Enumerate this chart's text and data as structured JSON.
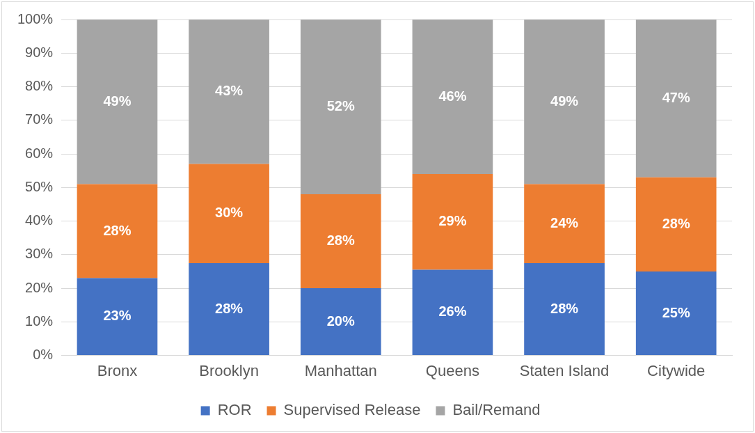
{
  "chart_data": {
    "type": "bar",
    "stacked": true,
    "categories": [
      "Bronx",
      "Brooklyn",
      "Manhattan",
      "Queens",
      "Staten Island",
      "Citywide"
    ],
    "series": [
      {
        "name": "ROR",
        "color": "#4472c4",
        "values": [
          23,
          27.5,
          20,
          25.5,
          27.5,
          25
        ],
        "value_labels": [
          "23%",
          "28%",
          "20%",
          "26%",
          "28%",
          "25%"
        ]
      },
      {
        "name": "Supervised Release",
        "color": "#ed7d31",
        "values": [
          28,
          29.5,
          28,
          28.5,
          23.5,
          28
        ],
        "value_labels": [
          "28%",
          "30%",
          "28%",
          "29%",
          "24%",
          "28%"
        ]
      },
      {
        "name": "Bail/Remand",
        "color": "#a5a5a5",
        "values": [
          49,
          43,
          52,
          46,
          49,
          47
        ],
        "value_labels": [
          "49%",
          "43%",
          "52%",
          "46%",
          "49%",
          "47%"
        ]
      }
    ],
    "ylim": [
      0,
      100
    ],
    "yticks": [
      {
        "value": 0,
        "label": "0%"
      },
      {
        "value": 10,
        "label": "10%"
      },
      {
        "value": 20,
        "label": "20%"
      },
      {
        "value": 30,
        "label": "30%"
      },
      {
        "value": 40,
        "label": "40%"
      },
      {
        "value": 50,
        "label": "50%"
      },
      {
        "value": 60,
        "label": "60%"
      },
      {
        "value": 70,
        "label": "70%"
      },
      {
        "value": 80,
        "label": "80%"
      },
      {
        "value": 90,
        "label": "90%"
      },
      {
        "value": 100,
        "label": "100%"
      }
    ],
    "grid": "y",
    "legend": "bottom"
  }
}
